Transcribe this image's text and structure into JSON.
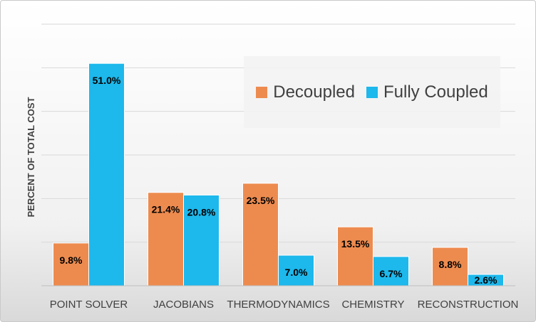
{
  "chart_data": {
    "type": "bar",
    "categories": [
      "POINT SOLVER",
      "JACOBIANS",
      "THERMODYNAMICS",
      "CHEMISTRY",
      "RECONSTRUCTION"
    ],
    "series": [
      {
        "name": "Decoupled",
        "color": "#ED8B4F",
        "values": [
          9.8,
          21.4,
          23.5,
          13.5,
          8.8
        ],
        "labels": [
          "9.8%",
          "21.4%",
          "23.5%",
          "13.5%",
          "8.8%"
        ]
      },
      {
        "name": "Fully Coupled",
        "color": "#1DB8EC",
        "values": [
          51.0,
          20.8,
          7.0,
          6.7,
          2.6
        ],
        "labels": [
          "51.0%",
          "20.8%",
          "7.0%",
          "6.7%",
          "2.6%"
        ]
      }
    ],
    "title": "",
    "xlabel": "",
    "ylabel": "PERCENT OF TOTAL COST",
    "ylim": [
      0,
      60
    ],
    "y_tick_step": 10,
    "grid": true,
    "y_tick_labels_shown": false,
    "legend_position": "top-right"
  }
}
